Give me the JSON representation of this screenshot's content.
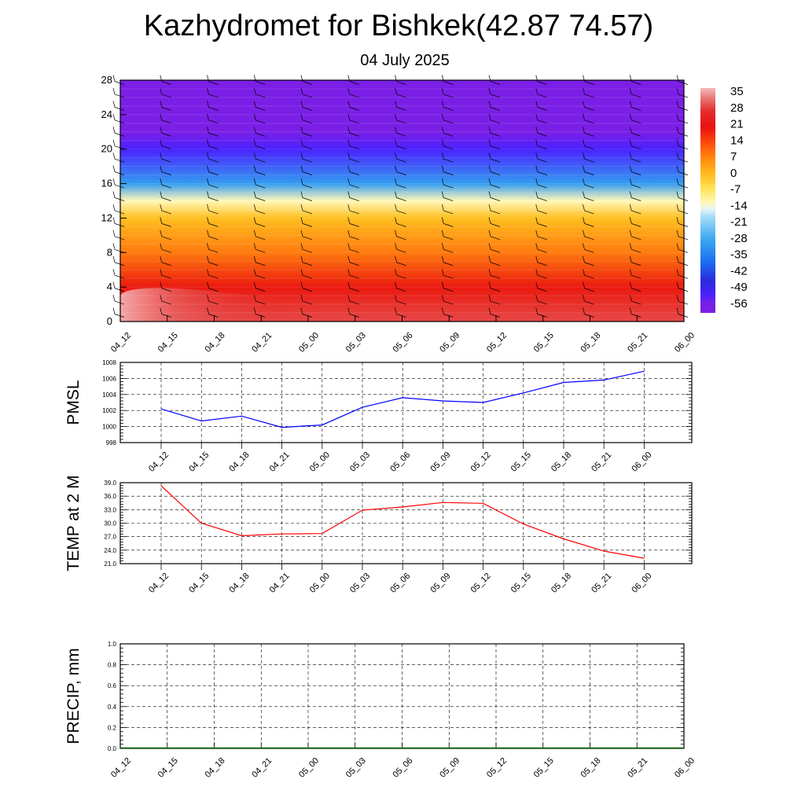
{
  "header": {
    "title": "Kazhydromet for Bishkek(42.87 74.57)",
    "date": "04 July 2025"
  },
  "chart_data": [
    {
      "type": "heatmap",
      "title": "Kazhydromet for Bishkek(42.87 74.57)",
      "subtitle": "04 July 2025",
      "xlabel": "",
      "ylabel": "",
      "x": [
        "04_12",
        "04_15",
        "04_18",
        "04_21",
        "05_00",
        "05_03",
        "05_06",
        "05_09",
        "05_12",
        "05_15",
        "05_18",
        "05_21",
        "06_00"
      ],
      "yticks": [
        0,
        4,
        8,
        12,
        16,
        20,
        24,
        28
      ],
      "ylim": [
        0,
        28
      ],
      "colorbar": {
        "labels": [
          "35",
          "28",
          "21",
          "14",
          "7",
          "0",
          "-7",
          "-14",
          "-21",
          "-28",
          "-35",
          "-42",
          "-49",
          "-56"
        ],
        "range": [
          -60,
          38
        ]
      },
      "temperature_profile": {
        "heights": [
          0,
          4,
          8,
          12,
          14,
          16,
          20,
          22,
          28
        ],
        "values": [
          30,
          20,
          9,
          0,
          -12,
          -30,
          -52,
          -58,
          -59
        ],
        "surface_warm_columns": [
          "04_12",
          "04_15",
          "04_18",
          "04_21"
        ],
        "surface_warm_value": 36
      },
      "wind_barbs": true,
      "grid": false
    },
    {
      "type": "line",
      "ylabel": "PMSL",
      "categories": [
        "04_12",
        "04_15",
        "04_18",
        "04_21",
        "05_00",
        "05_03",
        "05_06",
        "05_09",
        "05_12",
        "05_15",
        "05_18",
        "05_21",
        "06_00"
      ],
      "series": [
        {
          "values": [
            1002.2,
            1000.7,
            1001.3,
            999.9,
            1000.2,
            1002.4,
            1003.6,
            1003.2,
            1003.0,
            1004.2,
            1005.5,
            1005.8,
            1006.9
          ],
          "color": "#0000ff"
        }
      ],
      "yticks": [
        "998",
        "1000",
        "1002",
        "1004",
        "1006",
        "1008"
      ],
      "ylim": [
        998,
        1008
      ],
      "grid": true
    },
    {
      "type": "line",
      "ylabel": "TEMP at 2 M",
      "categories": [
        "04_12",
        "04_15",
        "04_18",
        "04_21",
        "05_00",
        "05_03",
        "05_06",
        "05_09",
        "05_12",
        "05_15",
        "05_18",
        "05_21",
        "06_00"
      ],
      "series": [
        {
          "values": [
            38.3,
            30.0,
            27.2,
            27.6,
            27.7,
            32.9,
            33.6,
            34.6,
            34.4,
            29.8,
            26.5,
            23.8,
            22.2
          ],
          "color": "#ff0000"
        }
      ],
      "yticks": [
        "21.0",
        "24.0",
        "27.0",
        "30.0",
        "33.0",
        "36.0",
        "39.0"
      ],
      "ylim": [
        21,
        39
      ],
      "grid": true
    },
    {
      "type": "line",
      "ylabel": "PRECIP, mm",
      "categories": [
        "04_12",
        "04_15",
        "04_18",
        "04_21",
        "05_00",
        "05_03",
        "05_06",
        "05_09",
        "05_12",
        "05_15",
        "05_18",
        "05_21",
        "06_00"
      ],
      "series": [
        {
          "values": [
            0,
            0,
            0,
            0,
            0,
            0,
            0,
            0,
            0,
            0,
            0,
            0,
            0
          ],
          "color": "#006400"
        }
      ],
      "yticks": [
        "0.0",
        "0.2",
        "0.4",
        "0.6",
        "0.8",
        "1.0"
      ],
      "ylim": [
        0,
        1
      ],
      "grid": true
    }
  ]
}
